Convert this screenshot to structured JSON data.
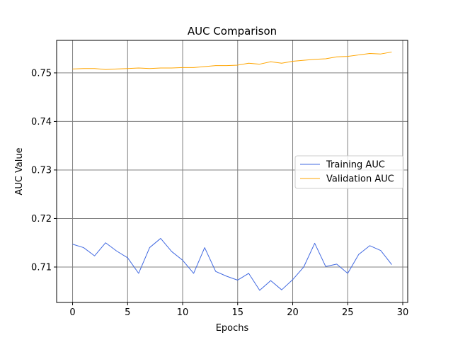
{
  "chart_data": {
    "type": "line",
    "title": "AUC Comparison",
    "xlabel": "Epochs",
    "ylabel": "AUC Value",
    "xlim": [
      -1.45,
      30.45
    ],
    "ylim": [
      0.7027,
      0.7567
    ],
    "xticks": [
      0,
      5,
      10,
      15,
      20,
      25,
      30
    ],
    "yticks": [
      0.71,
      0.72,
      0.73,
      0.74,
      0.75
    ],
    "ytick_labels": [
      "0.71",
      "0.72",
      "0.73",
      "0.74",
      "0.75"
    ],
    "grid": true,
    "grid_color": "#808080",
    "legend_position": "center-right",
    "x": [
      0,
      1,
      2,
      3,
      4,
      5,
      6,
      7,
      8,
      9,
      10,
      11,
      12,
      13,
      14,
      15,
      16,
      17,
      18,
      19,
      20,
      21,
      22,
      23,
      24,
      25,
      26,
      27,
      28,
      29
    ],
    "series": [
      {
        "name": "Training AUC",
        "color": "#4169e1",
        "values": [
          0.7147,
          0.714,
          0.7123,
          0.715,
          0.7133,
          0.7119,
          0.7087,
          0.714,
          0.7159,
          0.7132,
          0.7114,
          0.7087,
          0.714,
          0.7091,
          0.7081,
          0.7073,
          0.7087,
          0.7052,
          0.7072,
          0.7053,
          0.7074,
          0.71,
          0.7149,
          0.7101,
          0.7106,
          0.7087,
          0.7126,
          0.7144,
          0.7134,
          0.7105
        ]
      },
      {
        "name": "Validation AUC",
        "color": "#ffa500",
        "values": [
          0.7508,
          0.7509,
          0.7509,
          0.7507,
          0.7508,
          0.7509,
          0.751,
          0.7509,
          0.751,
          0.751,
          0.7511,
          0.7511,
          0.7513,
          0.7515,
          0.7515,
          0.7516,
          0.752,
          0.7518,
          0.7523,
          0.752,
          0.7524,
          0.7526,
          0.7528,
          0.7529,
          0.7533,
          0.7534,
          0.7537,
          0.754,
          0.7539,
          0.7543
        ]
      }
    ]
  }
}
